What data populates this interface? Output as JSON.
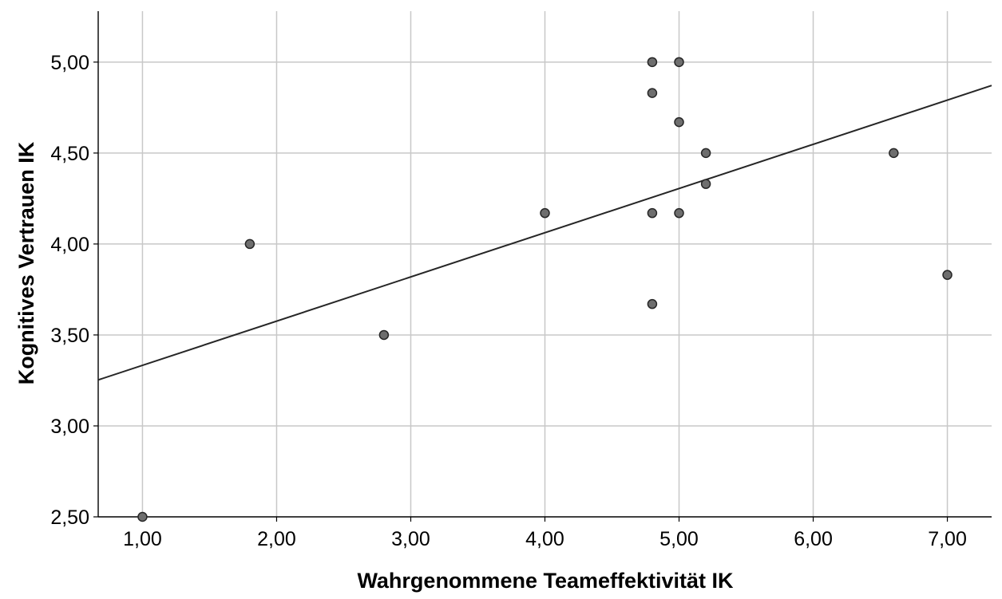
{
  "chart_data": {
    "type": "scatter",
    "title": "",
    "xlabel": "Wahrgenommene Teameffektivität IK",
    "ylabel": "Kognitives Vertrauen IK",
    "xlim": [
      0.67,
      7.33
    ],
    "ylim": [
      2.5,
      5.28
    ],
    "x_ticks": [
      1,
      2,
      3,
      4,
      5,
      6,
      7
    ],
    "x_tick_labels": [
      "1,00",
      "2,00",
      "3,00",
      "4,00",
      "5,00",
      "6,00",
      "7,00"
    ],
    "y_ticks": [
      2.5,
      3.0,
      3.5,
      4.0,
      4.5,
      5.0
    ],
    "y_tick_labels": [
      "2,50",
      "3,00",
      "3,50",
      "4,00",
      "4,50",
      "5,00"
    ],
    "grid": true,
    "points": [
      {
        "x": 1.0,
        "y": 2.5
      },
      {
        "x": 1.8,
        "y": 4.0
      },
      {
        "x": 2.8,
        "y": 3.5
      },
      {
        "x": 4.0,
        "y": 4.17
      },
      {
        "x": 4.8,
        "y": 5.0
      },
      {
        "x": 4.8,
        "y": 4.83
      },
      {
        "x": 4.8,
        "y": 4.17
      },
      {
        "x": 4.8,
        "y": 3.67
      },
      {
        "x": 5.0,
        "y": 5.0
      },
      {
        "x": 5.0,
        "y": 4.67
      },
      {
        "x": 5.0,
        "y": 4.17
      },
      {
        "x": 5.2,
        "y": 4.5
      },
      {
        "x": 5.2,
        "y": 4.33
      },
      {
        "x": 6.6,
        "y": 4.5
      },
      {
        "x": 7.0,
        "y": 3.83
      }
    ],
    "fit_line": {
      "intercept": 3.09,
      "slope": 0.243
    },
    "colors": {
      "point_fill": "#6e6e6e",
      "point_stroke": "#262626",
      "grid": "#c8c8c8",
      "fit_line": "#262626"
    }
  }
}
